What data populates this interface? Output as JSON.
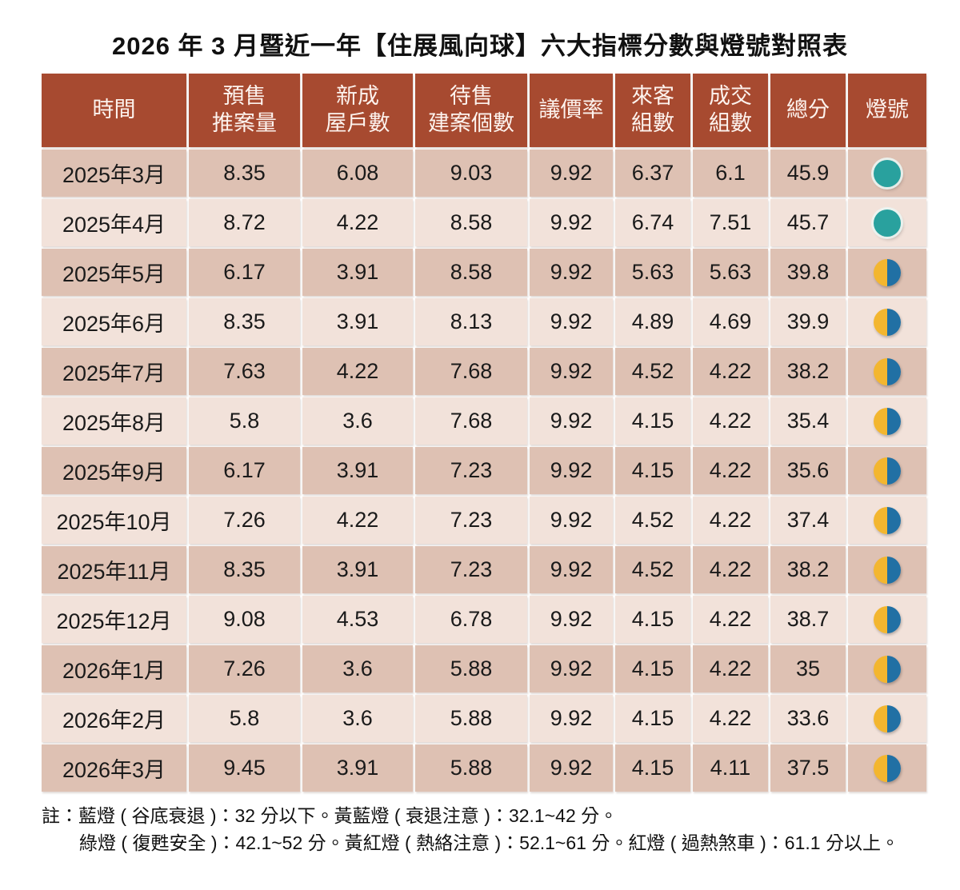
{
  "page": {
    "title": "2026 年 3 月暨近一年【住展風向球】六大指標分數與燈號對照表"
  },
  "colors": {
    "header_bg": "#A74A30",
    "header_text": "#FDF3EE",
    "row_dark": "#DEC1B3",
    "row_light": "#F2E2DA",
    "green_light": "#29A19E",
    "yellow_blue_light_yellow": "#F3B62F",
    "yellow_blue_light_blue": "#2170A4"
  },
  "chart_data": {
    "type": "table",
    "title": "2026 年 3 月暨近一年【住展風向球】六大指標分數與燈號對照表",
    "columns": [
      "時間",
      "預售推案量",
      "新成屋戶數",
      "待售建案個數",
      "議價率",
      "來客組數",
      "成交組數",
      "總分",
      "燈號"
    ],
    "header": {
      "cells": [
        {
          "name": "time",
          "lines": [
            "時間"
          ]
        },
        {
          "name": "presale-volume",
          "lines": [
            "預售",
            "推案量"
          ]
        },
        {
          "name": "new-house-units",
          "lines": [
            "新成",
            "屋戶數"
          ]
        },
        {
          "name": "forsale-projects",
          "lines": [
            "待售",
            "建案個數"
          ]
        },
        {
          "name": "negotiation-rate",
          "lines": [
            "議價率"
          ]
        },
        {
          "name": "visitor-groups",
          "lines": [
            "來客",
            "組數"
          ]
        },
        {
          "name": "deal-groups",
          "lines": [
            "成交",
            "組數"
          ]
        },
        {
          "name": "total-score",
          "lines": [
            "總分"
          ]
        },
        {
          "name": "light-signal",
          "lines": [
            "燈號"
          ]
        }
      ]
    },
    "rows": [
      {
        "time": "2025年3月",
        "values": [
          8.35,
          6.08,
          9.03,
          9.92,
          6.37,
          6.1,
          45.9
        ],
        "light": "green"
      },
      {
        "time": "2025年4月",
        "values": [
          8.72,
          4.22,
          8.58,
          9.92,
          6.74,
          7.51,
          45.7
        ],
        "light": "green"
      },
      {
        "time": "2025年5月",
        "values": [
          6.17,
          3.91,
          8.58,
          9.92,
          5.63,
          5.63,
          39.8
        ],
        "light": "yellow-blue"
      },
      {
        "time": "2025年6月",
        "values": [
          8.35,
          3.91,
          8.13,
          9.92,
          4.89,
          4.69,
          39.9
        ],
        "light": "yellow-blue"
      },
      {
        "time": "2025年7月",
        "values": [
          7.63,
          4.22,
          7.68,
          9.92,
          4.52,
          4.22,
          38.2
        ],
        "light": "yellow-blue"
      },
      {
        "time": "2025年8月",
        "values": [
          5.8,
          3.6,
          7.68,
          9.92,
          4.15,
          4.22,
          35.4
        ],
        "light": "yellow-blue"
      },
      {
        "time": "2025年9月",
        "values": [
          6.17,
          3.91,
          7.23,
          9.92,
          4.15,
          4.22,
          35.6
        ],
        "light": "yellow-blue"
      },
      {
        "time": "2025年10月",
        "values": [
          7.26,
          4.22,
          7.23,
          9.92,
          4.52,
          4.22,
          37.4
        ],
        "light": "yellow-blue"
      },
      {
        "time": "2025年11月",
        "values": [
          8.35,
          3.91,
          7.23,
          9.92,
          4.52,
          4.22,
          38.2
        ],
        "light": "yellow-blue"
      },
      {
        "time": "2025年12月",
        "values": [
          9.08,
          4.53,
          6.78,
          9.92,
          4.15,
          4.22,
          38.7
        ],
        "light": "yellow-blue"
      },
      {
        "time": "2026年1月",
        "values": [
          7.26,
          3.6,
          5.88,
          9.92,
          4.15,
          4.22,
          35
        ],
        "light": "yellow-blue"
      },
      {
        "time": "2026年2月",
        "values": [
          5.8,
          3.6,
          5.88,
          9.92,
          4.15,
          4.22,
          33.6
        ],
        "light": "yellow-blue"
      },
      {
        "time": "2026年3月",
        "values": [
          9.45,
          3.91,
          5.88,
          9.92,
          4.15,
          4.11,
          37.5
        ],
        "light": "yellow-blue"
      }
    ],
    "light_legend": [
      {
        "light": "藍燈",
        "meaning": "谷底衰退",
        "range": "32 分以下"
      },
      {
        "light": "黃藍燈",
        "meaning": "衰退注意",
        "range": "32.1~42 分"
      },
      {
        "light": "綠燈",
        "meaning": "復甦安全",
        "range": "42.1~52 分"
      },
      {
        "light": "黃紅燈",
        "meaning": "熱絡注意",
        "range": "52.1~61 分"
      },
      {
        "light": "紅燈",
        "meaning": "過熱煞車",
        "range": "61.1 分以上"
      }
    ]
  },
  "notes": {
    "prefix": "註：",
    "line1": "藍燈 ( 谷底衰退 )：32 分以下。黃藍燈 ( 衰退注意 )：32.1~42 分。",
    "line2": "綠燈 ( 復甦安全 )：42.1~52 分。黃紅燈 ( 熱絡注意 )：52.1~61 分。紅燈 ( 過熱煞車 )：61.1 分以上。"
  }
}
